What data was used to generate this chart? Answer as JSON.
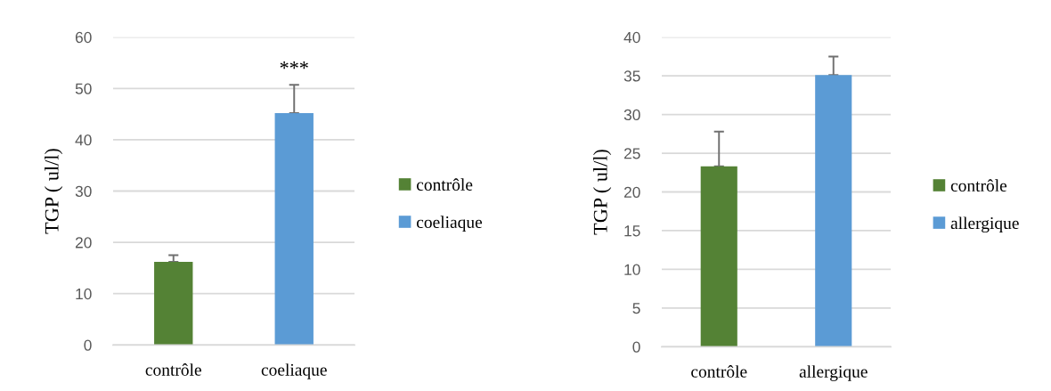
{
  "chart_data": [
    {
      "type": "bar",
      "ylabel": "TGP ( ul/l)",
      "categories": [
        "contrôle",
        "coeliaque"
      ],
      "stacked": true,
      "series": [
        {
          "name": "contrôle",
          "color": "#548235",
          "values": [
            16.2,
            null
          ],
          "errors": [
            [
              16.2,
              17.5
            ],
            null
          ]
        },
        {
          "name": "coeliaque",
          "color": "#5b9bd5",
          "values": [
            null,
            45.2
          ],
          "errors": [
            null,
            [
              45.2,
              50.7
            ]
          ]
        }
      ],
      "ylim": [
        0,
        60
      ],
      "yticks": [
        0,
        10,
        20,
        30,
        40,
        50,
        60
      ],
      "grid": "y",
      "legend": "right",
      "annotations": [
        "***"
      ]
    },
    {
      "type": "bar",
      "ylabel": "TGP ( ul/l)",
      "categories": [
        "contrôle",
        "allergique"
      ],
      "stacked": true,
      "series": [
        {
          "name": "contrôle",
          "color": "#548235",
          "values": [
            23.3,
            null
          ],
          "errors": [
            [
              23.3,
              27.8
            ],
            null
          ]
        },
        {
          "name": "allergique",
          "color": "#5b9bd5",
          "values": [
            null,
            35.1
          ],
          "errors": [
            null,
            [
              35.1,
              37.5
            ]
          ]
        }
      ],
      "ylim": [
        0,
        40
      ],
      "yticks": [
        0,
        5,
        10,
        15,
        20,
        25,
        30,
        35,
        40
      ],
      "grid": "y",
      "legend": "right"
    }
  ]
}
